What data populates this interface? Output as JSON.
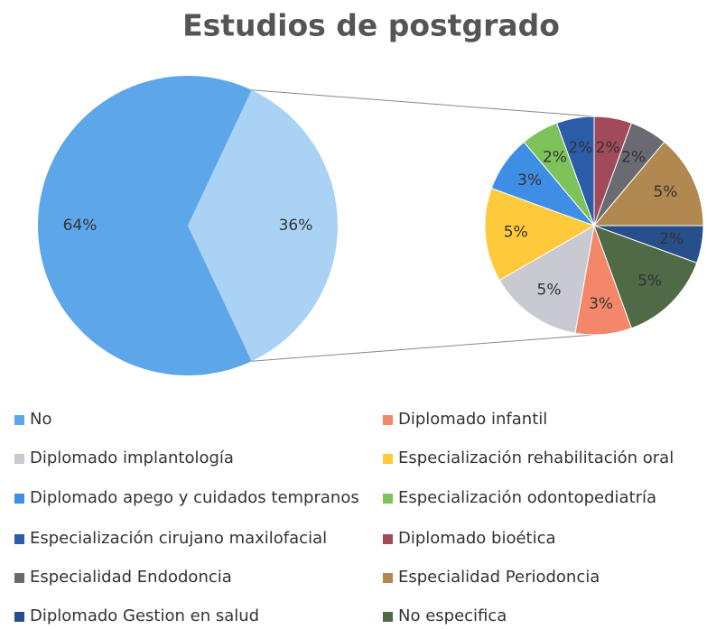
{
  "chart_data": {
    "type": "pie-of-pie",
    "title": "Estudios de postgrado",
    "categories": [
      "No",
      "Diplomado infantil",
      "Diplomado implantología",
      "Especialización rehabilitación oral",
      "Diplomado apego y cuidados tempranos",
      "Especialización odontopediatría",
      "Especialización cirujano maxilofacial",
      "Diplomado bioética",
      "Especialidad Endodoncia",
      "Especialidad Periodoncia",
      "Diplomado Gestion en salud",
      "No especifica"
    ],
    "values": [
      64,
      3,
      5,
      5,
      3,
      2,
      2,
      2,
      2,
      5,
      2,
      5
    ],
    "value_labels": [
      "64%",
      "3%",
      "5%",
      "5%",
      "3%",
      "2%",
      "2%",
      "2%",
      "2%",
      "5%",
      "2%",
      "5%"
    ],
    "colors": [
      "#5ea6ea",
      "#f4866a",
      "#c9c9d2",
      "#ffc93c",
      "#3f8ee6",
      "#7dc35a",
      "#2a5ca8",
      "#a04a5a",
      "#6a6a72",
      "#b08850",
      "#264f8c",
      "#4f6a45"
    ],
    "other_value": 36,
    "other_label": "36%",
    "other_color": "#a9d2f5"
  }
}
